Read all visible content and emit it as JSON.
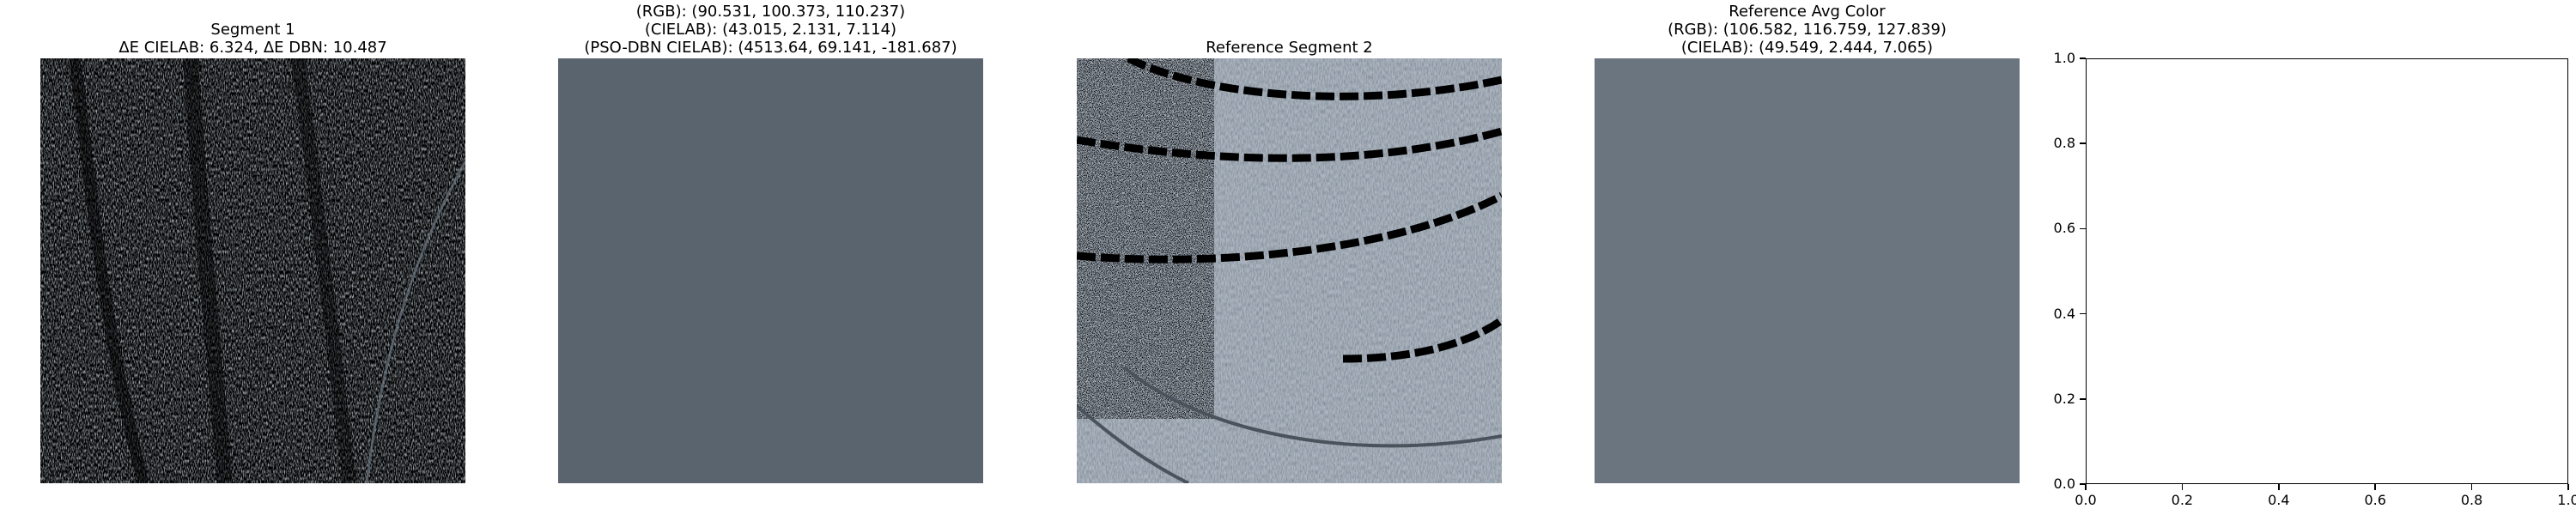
{
  "panels": {
    "segment1": {
      "title_line1": "Segment 1",
      "title_line2": "ΔE CIELAB: 6.324, ΔE DBN: 10.487"
    },
    "segment1_avg": {
      "title_line1": "(RGB): (90.531, 100.373, 110.237)",
      "title_line2": "(CIELAB): (43.015, 2.131, 7.114)",
      "title_line3": "(PSO-DBN CIELAB): (4513.64, 69.141, -181.687)",
      "swatch_color": "#5a646e"
    },
    "reference_segment": {
      "title_line1": "Reference Segment 2"
    },
    "reference_avg": {
      "title_line1": "Reference Avg Color",
      "title_line2": "(RGB): (106.582, 116.759, 127.839)",
      "title_line3": "(CIELAB): (49.549, 2.444, 7.065)",
      "swatch_color": "#6a7580"
    }
  },
  "chart_data": {
    "type": "scatter",
    "title": "",
    "xlabel": "",
    "ylabel": "",
    "xlim": [
      0.0,
      1.0
    ],
    "ylim": [
      0.0,
      1.0
    ],
    "x_ticks": [
      "0.0",
      "0.2",
      "0.4",
      "0.6",
      "0.8",
      "1.0"
    ],
    "y_ticks": [
      "0.0",
      "0.2",
      "0.4",
      "0.6",
      "0.8",
      "1.0"
    ],
    "series": [],
    "grid": false
  }
}
